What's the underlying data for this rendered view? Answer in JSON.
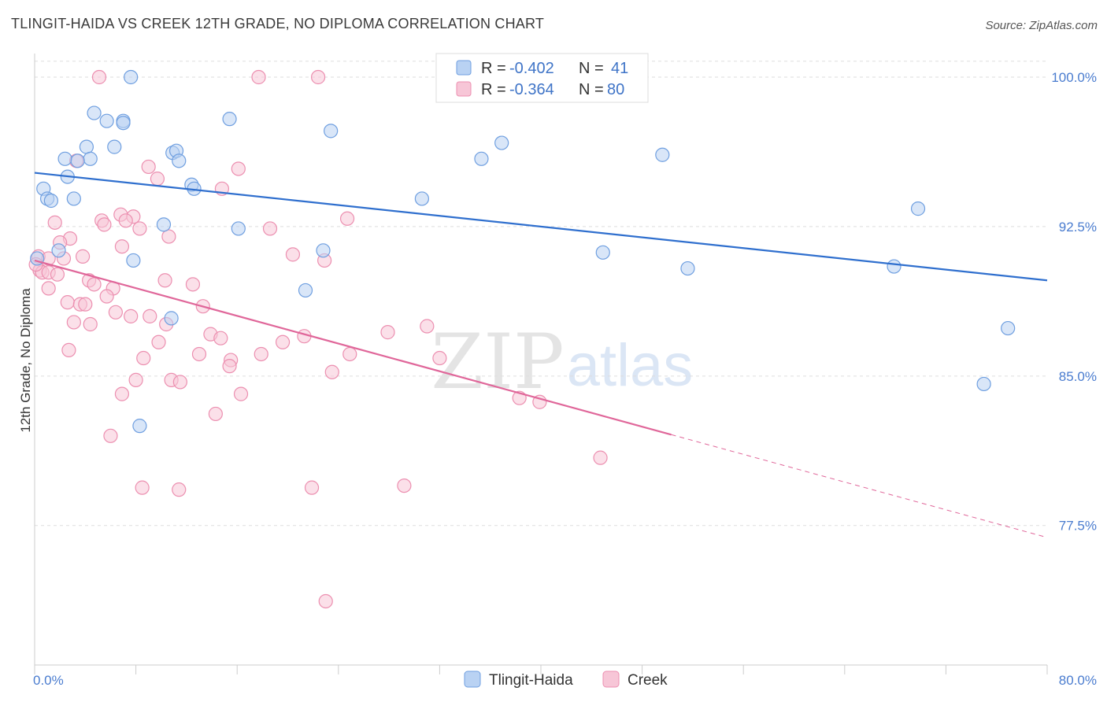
{
  "title": "TLINGIT-HAIDA VS CREEK 12TH GRADE, NO DIPLOMA CORRELATION CHART",
  "source": "Source: ZipAtlas.com",
  "watermark": {
    "zip": "ZIP",
    "atlas": "atlas"
  },
  "colors": {
    "blue": "#6f9fe0",
    "blue_fill": "#b9d2f3",
    "blue_line": "#2f6fce",
    "pink": "#ec8fb0",
    "pink_fill": "#f7c6d7",
    "pink_line": "#e0679a",
    "tick_text": "#4a7ccf",
    "grid": "#dddddd"
  },
  "legend": {
    "rows": [
      {
        "r_label": "R =",
        "r_value": "-0.402",
        "n_label": "N =",
        "n_value": "41",
        "series": "blue"
      },
      {
        "r_label": "R =",
        "r_value": "-0.364",
        "n_label": "N =",
        "n_value": "80",
        "series": "pink"
      }
    ]
  },
  "chart_data": {
    "type": "scatter",
    "title": "TLINGIT-HAIDA VS CREEK 12TH GRADE, NO DIPLOMA CORRELATION CHART",
    "xlabel": "",
    "ylabel": "12th Grade, No Diploma",
    "xlim": [
      0,
      80
    ],
    "ylim": [
      70.5,
      101.5
    ],
    "y_ticks": [
      100.0,
      92.5,
      85.0,
      77.5
    ],
    "y_tick_labels": [
      "100.0%",
      "92.5%",
      "85.0%",
      "77.5%"
    ],
    "x_tick_labels": [
      "0.0%",
      "80.0%"
    ],
    "grid": "horizontal dashed",
    "legend_placement": "top-center",
    "series": [
      {
        "name": "Tlingit-Haida",
        "color": "blue",
        "trend": {
          "x1": 0.0,
          "y1": 95.2,
          "x2": 80.0,
          "y2": 89.8,
          "dashed_from": null
        },
        "points": [
          [
            7.6,
            100.0
          ],
          [
            4.7,
            98.2
          ],
          [
            5.7,
            97.8
          ],
          [
            7.0,
            97.8
          ],
          [
            7.0,
            97.7
          ],
          [
            15.4,
            97.9
          ],
          [
            23.4,
            97.3
          ],
          [
            36.9,
            96.7
          ],
          [
            6.3,
            96.5
          ],
          [
            4.1,
            96.5
          ],
          [
            10.9,
            96.2
          ],
          [
            11.2,
            96.3
          ],
          [
            49.6,
            96.1
          ],
          [
            2.4,
            95.9
          ],
          [
            4.4,
            95.9
          ],
          [
            3.4,
            95.8
          ],
          [
            11.4,
            95.8
          ],
          [
            35.3,
            95.9
          ],
          [
            2.6,
            95.0
          ],
          [
            0.7,
            94.4
          ],
          [
            12.4,
            94.6
          ],
          [
            12.6,
            94.4
          ],
          [
            1.0,
            93.9
          ],
          [
            1.3,
            93.8
          ],
          [
            3.1,
            93.9
          ],
          [
            30.6,
            93.9
          ],
          [
            69.8,
            93.4
          ],
          [
            10.2,
            92.6
          ],
          [
            16.1,
            92.4
          ],
          [
            1.9,
            91.3
          ],
          [
            22.8,
            91.3
          ],
          [
            44.9,
            91.2
          ],
          [
            0.2,
            90.9
          ],
          [
            7.8,
            90.8
          ],
          [
            51.6,
            90.4
          ],
          [
            67.9,
            90.5
          ],
          [
            21.4,
            89.3
          ],
          [
            10.8,
            87.9
          ],
          [
            76.9,
            87.4
          ],
          [
            75.0,
            84.6
          ],
          [
            8.3,
            82.5
          ]
        ]
      },
      {
        "name": "Creek",
        "color": "pink",
        "trend": {
          "x1": 0.0,
          "y1": 90.8,
          "x2": 80.0,
          "y2": 76.9,
          "dashed_from": 50.3
        },
        "points": [
          [
            5.1,
            100.0
          ],
          [
            17.7,
            100.0
          ],
          [
            22.4,
            100.0
          ],
          [
            9.0,
            95.5
          ],
          [
            16.1,
            95.4
          ],
          [
            3.3,
            95.8
          ],
          [
            9.7,
            94.9
          ],
          [
            14.8,
            94.4
          ],
          [
            6.8,
            93.1
          ],
          [
            7.8,
            93.0
          ],
          [
            5.3,
            92.8
          ],
          [
            7.2,
            92.8
          ],
          [
            1.6,
            92.7
          ],
          [
            5.5,
            92.6
          ],
          [
            8.3,
            92.4
          ],
          [
            18.6,
            92.4
          ],
          [
            24.7,
            92.9
          ],
          [
            2.8,
            91.9
          ],
          [
            10.6,
            92.0
          ],
          [
            2.0,
            91.7
          ],
          [
            6.9,
            91.5
          ],
          [
            20.4,
            91.1
          ],
          [
            22.9,
            90.8
          ],
          [
            0.3,
            91.0
          ],
          [
            1.1,
            90.9
          ],
          [
            2.3,
            90.9
          ],
          [
            3.8,
            91.0
          ],
          [
            0.4,
            90.3
          ],
          [
            0.6,
            90.2
          ],
          [
            1.1,
            90.2
          ],
          [
            1.8,
            90.1
          ],
          [
            4.3,
            89.8
          ],
          [
            4.7,
            89.6
          ],
          [
            10.3,
            89.8
          ],
          [
            12.5,
            89.6
          ],
          [
            6.2,
            89.4
          ],
          [
            1.1,
            89.4
          ],
          [
            5.7,
            89.0
          ],
          [
            2.6,
            88.7
          ],
          [
            3.6,
            88.6
          ],
          [
            4.0,
            88.6
          ],
          [
            13.3,
            88.5
          ],
          [
            6.4,
            88.2
          ],
          [
            7.6,
            88.0
          ],
          [
            9.1,
            88.0
          ],
          [
            3.1,
            87.7
          ],
          [
            4.4,
            87.6
          ],
          [
            10.4,
            87.6
          ],
          [
            27.9,
            87.2
          ],
          [
            31.0,
            87.5
          ],
          [
            13.9,
            87.1
          ],
          [
            21.3,
            87.0
          ],
          [
            14.7,
            86.9
          ],
          [
            19.6,
            86.7
          ],
          [
            9.8,
            86.7
          ],
          [
            2.7,
            86.3
          ],
          [
            13.0,
            86.1
          ],
          [
            17.9,
            86.1
          ],
          [
            24.9,
            86.1
          ],
          [
            8.6,
            85.9
          ],
          [
            15.5,
            85.8
          ],
          [
            32.0,
            85.9
          ],
          [
            15.4,
            85.5
          ],
          [
            23.5,
            85.2
          ],
          [
            8.0,
            84.8
          ],
          [
            10.8,
            84.8
          ],
          [
            11.5,
            84.7
          ],
          [
            6.9,
            84.1
          ],
          [
            16.3,
            84.1
          ],
          [
            38.3,
            83.9
          ],
          [
            39.9,
            83.7
          ],
          [
            14.3,
            83.1
          ],
          [
            6.0,
            82.0
          ],
          [
            44.7,
            80.9
          ],
          [
            8.5,
            79.4
          ],
          [
            11.4,
            79.3
          ],
          [
            21.9,
            79.4
          ],
          [
            29.2,
            79.5
          ],
          [
            23.0,
            73.7
          ],
          [
            0.1,
            90.6
          ]
        ]
      }
    ]
  },
  "bottom_legend": [
    {
      "label": "Tlingit-Haida",
      "series": "blue"
    },
    {
      "label": "Creek",
      "series": "pink"
    }
  ]
}
